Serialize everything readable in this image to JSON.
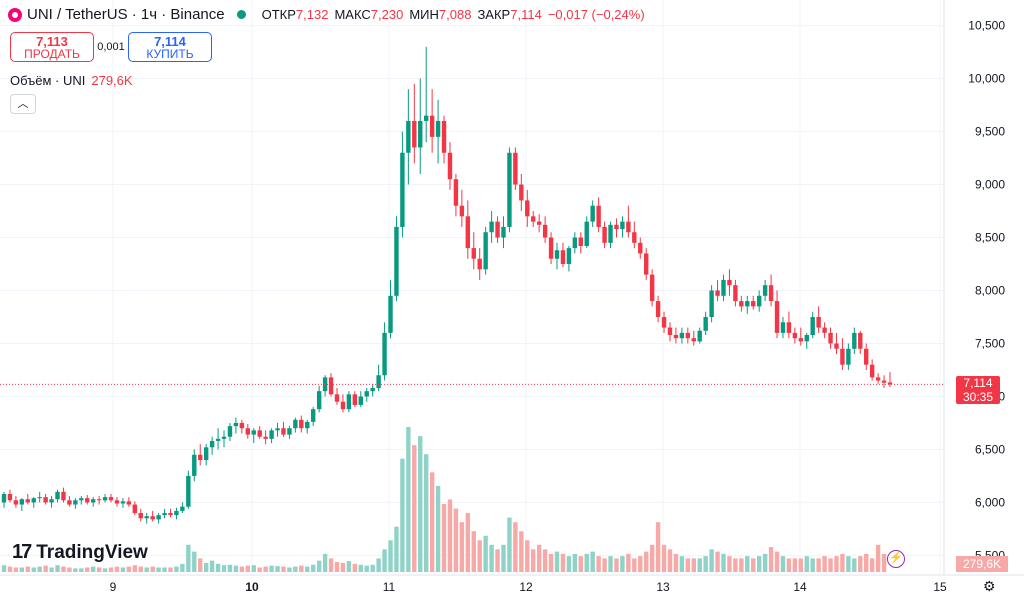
{
  "header": {
    "title": "UNI / TetherUS · 1ч · Binance",
    "open_label": "ОТКР",
    "open": "7,132",
    "high_label": "МАКС",
    "high": "7,230",
    "low_label": "МИН",
    "low": "7,088",
    "close_label": "ЗАКР",
    "close": "7,114",
    "change": "−0,017 (−0,24%)"
  },
  "trade": {
    "sell_price": "7,113",
    "sell_label": "ПРОДАТЬ",
    "spread": "0,001",
    "buy_price": "7,114",
    "buy_label": "КУПИТЬ"
  },
  "volume": {
    "label": "Объём · UNI",
    "value": "279,6K"
  },
  "logo": "TradingView",
  "price_tag": {
    "price": "7,114",
    "countdown": "30:35"
  },
  "volume_tag": "279,6K",
  "colors": {
    "up": "#089981",
    "down": "#f23645",
    "vol_up": "#8fd3c8",
    "vol_down": "#f7a9a7"
  },
  "chart_data": {
    "type": "candlestick",
    "y_ticks": [
      "5,500",
      "6,000",
      "6,500",
      "7,000",
      "7,500",
      "8,000",
      "8,500",
      "9,000",
      "9,500",
      "10,000",
      "10,500"
    ],
    "y_tick_values": [
      5.5,
      6.0,
      6.5,
      7.0,
      7.5,
      8.0,
      8.5,
      9.0,
      9.5,
      10.0,
      10.5
    ],
    "x_ticks": [
      "9",
      "10",
      "11",
      "12",
      "13",
      "14",
      "15"
    ],
    "x_tick_bold": [
      false,
      true,
      false,
      false,
      false,
      false,
      false
    ],
    "ylim": [
      5.4,
      10.6
    ],
    "last_price": 7.114,
    "candles": [
      [
        6.0,
        6.1,
        5.95,
        6.08
      ],
      [
        6.08,
        6.12,
        6.0,
        6.02
      ],
      [
        6.02,
        6.06,
        5.95,
        5.98
      ],
      [
        5.98,
        6.04,
        5.92,
        6.03
      ],
      [
        6.03,
        6.08,
        5.98,
        6.0
      ],
      [
        6.0,
        6.05,
        5.95,
        6.04
      ],
      [
        6.04,
        6.1,
        6.0,
        6.05
      ],
      [
        6.05,
        6.08,
        5.98,
        6.0
      ],
      [
        6.0,
        6.06,
        5.95,
        6.03
      ],
      [
        6.03,
        6.12,
        6.0,
        6.1
      ],
      [
        6.1,
        6.14,
        6.0,
        6.02
      ],
      [
        6.02,
        6.06,
        5.96,
        5.98
      ],
      [
        5.98,
        6.04,
        5.94,
        6.02
      ],
      [
        6.02,
        6.06,
        5.98,
        6.04
      ],
      [
        6.04,
        6.07,
        5.98,
        6.0
      ],
      [
        6.0,
        6.05,
        5.96,
        6.03
      ],
      [
        6.03,
        6.06,
        5.98,
        6.02
      ],
      [
        6.02,
        6.08,
        6.0,
        6.05
      ],
      [
        6.05,
        6.08,
        6.0,
        6.02
      ],
      [
        6.02,
        6.05,
        5.96,
        5.99
      ],
      [
        5.99,
        6.04,
        5.95,
        6.01
      ],
      [
        6.01,
        6.05,
        5.96,
        5.98
      ],
      [
        5.98,
        6.01,
        5.88,
        5.9
      ],
      [
        5.9,
        5.94,
        5.82,
        5.85
      ],
      [
        5.85,
        5.9,
        5.8,
        5.87
      ],
      [
        5.87,
        5.92,
        5.82,
        5.84
      ],
      [
        5.84,
        5.9,
        5.8,
        5.88
      ],
      [
        5.88,
        5.94,
        5.85,
        5.9
      ],
      [
        5.9,
        5.94,
        5.86,
        5.88
      ],
      [
        5.88,
        5.95,
        5.84,
        5.92
      ],
      [
        5.92,
        6.0,
        5.9,
        5.96
      ],
      [
        5.96,
        6.3,
        5.94,
        6.25
      ],
      [
        6.25,
        6.5,
        6.2,
        6.45
      ],
      [
        6.45,
        6.55,
        6.35,
        6.4
      ],
      [
        6.4,
        6.55,
        6.35,
        6.52
      ],
      [
        6.52,
        6.62,
        6.45,
        6.58
      ],
      [
        6.58,
        6.7,
        6.5,
        6.6
      ],
      [
        6.6,
        6.68,
        6.52,
        6.62
      ],
      [
        6.62,
        6.75,
        6.58,
        6.72
      ],
      [
        6.72,
        6.8,
        6.65,
        6.75
      ],
      [
        6.75,
        6.78,
        6.65,
        6.7
      ],
      [
        6.7,
        6.74,
        6.6,
        6.64
      ],
      [
        6.64,
        6.7,
        6.56,
        6.68
      ],
      [
        6.68,
        6.72,
        6.6,
        6.62
      ],
      [
        6.62,
        6.68,
        6.55,
        6.6
      ],
      [
        6.6,
        6.7,
        6.56,
        6.68
      ],
      [
        6.68,
        6.75,
        6.62,
        6.7
      ],
      [
        6.7,
        6.76,
        6.62,
        6.64
      ],
      [
        6.64,
        6.72,
        6.6,
        6.7
      ],
      [
        6.7,
        6.8,
        6.66,
        6.78
      ],
      [
        6.78,
        6.82,
        6.66,
        6.7
      ],
      [
        6.7,
        6.78,
        6.65,
        6.76
      ],
      [
        6.76,
        6.9,
        6.72,
        6.88
      ],
      [
        6.88,
        7.1,
        6.85,
        7.05
      ],
      [
        7.05,
        7.2,
        7.0,
        7.18
      ],
      [
        7.18,
        7.22,
        7.0,
        7.02
      ],
      [
        7.02,
        7.08,
        6.92,
        6.95
      ],
      [
        6.95,
        7.02,
        6.85,
        6.88
      ],
      [
        6.88,
        7.05,
        6.85,
        7.02
      ],
      [
        7.02,
        7.05,
        6.9,
        6.92
      ],
      [
        6.92,
        7.05,
        6.9,
        7.0
      ],
      [
        7.0,
        7.08,
        6.95,
        7.05
      ],
      [
        7.05,
        7.12,
        7.0,
        7.08
      ],
      [
        7.08,
        7.3,
        7.05,
        7.2
      ],
      [
        7.2,
        7.7,
        7.15,
        7.6
      ],
      [
        7.6,
        8.1,
        7.55,
        7.95
      ],
      [
        7.95,
        8.7,
        7.9,
        8.6
      ],
      [
        8.6,
        9.5,
        8.5,
        9.3
      ],
      [
        9.3,
        9.9,
        9.0,
        9.6
      ],
      [
        9.6,
        9.95,
        9.2,
        9.35
      ],
      [
        9.35,
        10.0,
        9.1,
        9.6
      ],
      [
        9.6,
        10.3,
        9.4,
        9.65
      ],
      [
        9.65,
        9.9,
        9.3,
        9.45
      ],
      [
        9.45,
        9.8,
        9.2,
        9.6
      ],
      [
        9.6,
        9.65,
        9.2,
        9.3
      ],
      [
        9.3,
        9.4,
        8.95,
        9.05
      ],
      [
        9.05,
        9.1,
        8.7,
        8.8
      ],
      [
        8.8,
        8.95,
        8.6,
        8.7
      ],
      [
        8.7,
        8.85,
        8.3,
        8.4
      ],
      [
        8.4,
        8.55,
        8.2,
        8.3
      ],
      [
        8.3,
        8.4,
        8.1,
        8.2
      ],
      [
        8.2,
        8.6,
        8.15,
        8.55
      ],
      [
        8.55,
        8.75,
        8.45,
        8.65
      ],
      [
        8.65,
        8.7,
        8.45,
        8.5
      ],
      [
        8.5,
        8.7,
        8.4,
        8.6
      ],
      [
        8.6,
        9.35,
        8.55,
        9.3
      ],
      [
        9.3,
        9.35,
        8.95,
        9.0
      ],
      [
        9.0,
        9.1,
        8.75,
        8.85
      ],
      [
        8.85,
        8.95,
        8.6,
        8.7
      ],
      [
        8.7,
        8.75,
        8.6,
        8.65
      ],
      [
        8.65,
        8.72,
        8.55,
        8.62
      ],
      [
        8.62,
        8.7,
        8.45,
        8.5
      ],
      [
        8.5,
        8.55,
        8.25,
        8.3
      ],
      [
        8.3,
        8.45,
        8.2,
        8.38
      ],
      [
        8.38,
        8.45,
        8.22,
        8.25
      ],
      [
        8.25,
        8.42,
        8.18,
        8.4
      ],
      [
        8.4,
        8.55,
        8.35,
        8.5
      ],
      [
        8.5,
        8.55,
        8.35,
        8.42
      ],
      [
        8.42,
        8.7,
        8.4,
        8.65
      ],
      [
        8.65,
        8.85,
        8.6,
        8.8
      ],
      [
        8.8,
        8.88,
        8.55,
        8.6
      ],
      [
        8.6,
        8.65,
        8.4,
        8.45
      ],
      [
        8.45,
        8.65,
        8.4,
        8.62
      ],
      [
        8.62,
        8.68,
        8.5,
        8.58
      ],
      [
        8.58,
        8.7,
        8.5,
        8.65
      ],
      [
        8.65,
        8.8,
        8.5,
        8.55
      ],
      [
        8.55,
        8.65,
        8.4,
        8.45
      ],
      [
        8.45,
        8.5,
        8.3,
        8.35
      ],
      [
        8.35,
        8.4,
        8.1,
        8.15
      ],
      [
        8.15,
        8.2,
        7.85,
        7.9
      ],
      [
        7.9,
        7.95,
        7.7,
        7.75
      ],
      [
        7.75,
        7.8,
        7.6,
        7.65
      ],
      [
        7.65,
        7.7,
        7.52,
        7.58
      ],
      [
        7.58,
        7.65,
        7.5,
        7.55
      ],
      [
        7.55,
        7.65,
        7.5,
        7.6
      ],
      [
        7.6,
        7.65,
        7.5,
        7.55
      ],
      [
        7.55,
        7.62,
        7.48,
        7.52
      ],
      [
        7.52,
        7.65,
        7.5,
        7.62
      ],
      [
        7.62,
        7.8,
        7.58,
        7.75
      ],
      [
        7.75,
        8.05,
        7.7,
        8.0
      ],
      [
        8.0,
        8.1,
        7.9,
        7.95
      ],
      [
        7.95,
        8.15,
        7.9,
        8.1
      ],
      [
        8.1,
        8.2,
        7.95,
        8.05
      ],
      [
        8.05,
        8.1,
        7.85,
        7.9
      ],
      [
        7.9,
        7.95,
        7.8,
        7.85
      ],
      [
        7.85,
        7.95,
        7.78,
        7.9
      ],
      [
        7.9,
        7.95,
        7.82,
        7.85
      ],
      [
        7.85,
        8.0,
        7.8,
        7.95
      ],
      [
        7.95,
        8.1,
        7.9,
        8.05
      ],
      [
        8.05,
        8.15,
        7.85,
        7.9
      ],
      [
        7.9,
        8.0,
        7.55,
        7.6
      ],
      [
        7.6,
        7.75,
        7.55,
        7.7
      ],
      [
        7.7,
        7.8,
        7.55,
        7.6
      ],
      [
        7.6,
        7.65,
        7.5,
        7.55
      ],
      [
        7.55,
        7.65,
        7.48,
        7.52
      ],
      [
        7.52,
        7.6,
        7.45,
        7.58
      ],
      [
        7.58,
        7.8,
        7.55,
        7.75
      ],
      [
        7.75,
        7.85,
        7.6,
        7.65
      ],
      [
        7.65,
        7.7,
        7.55,
        7.6
      ],
      [
        7.6,
        7.65,
        7.45,
        7.5
      ],
      [
        7.5,
        7.6,
        7.4,
        7.45
      ],
      [
        7.45,
        7.55,
        7.25,
        7.3
      ],
      [
        7.3,
        7.5,
        7.25,
        7.45
      ],
      [
        7.45,
        7.65,
        7.4,
        7.6
      ],
      [
        7.6,
        7.62,
        7.4,
        7.45
      ],
      [
        7.45,
        7.5,
        7.25,
        7.3
      ],
      [
        7.3,
        7.35,
        7.15,
        7.18
      ],
      [
        7.18,
        7.22,
        7.12,
        7.15
      ],
      [
        7.15,
        7.2,
        7.08,
        7.13
      ],
      [
        7.132,
        7.23,
        7.088,
        7.114
      ]
    ],
    "volumes": [
      0.15,
      0.12,
      0.1,
      0.1,
      0.12,
      0.1,
      0.12,
      0.14,
      0.1,
      0.15,
      0.12,
      0.1,
      0.08,
      0.08,
      0.1,
      0.12,
      0.1,
      0.08,
      0.1,
      0.12,
      0.1,
      0.12,
      0.15,
      0.12,
      0.1,
      0.12,
      0.1,
      0.1,
      0.1,
      0.12,
      0.18,
      0.6,
      0.45,
      0.3,
      0.2,
      0.25,
      0.18,
      0.15,
      0.16,
      0.14,
      0.12,
      0.14,
      0.15,
      0.1,
      0.12,
      0.14,
      0.13,
      0.12,
      0.1,
      0.12,
      0.14,
      0.12,
      0.16,
      0.25,
      0.4,
      0.3,
      0.22,
      0.2,
      0.24,
      0.18,
      0.16,
      0.14,
      0.16,
      0.3,
      0.5,
      0.7,
      1.0,
      2.5,
      3.2,
      2.8,
      3.0,
      2.6,
      2.2,
      1.9,
      1.5,
      1.6,
      1.4,
      1.1,
      1.3,
      0.9,
      0.7,
      0.8,
      0.6,
      0.5,
      0.6,
      1.2,
      1.1,
      0.9,
      0.7,
      0.5,
      0.6,
      0.5,
      0.4,
      0.45,
      0.4,
      0.35,
      0.4,
      0.35,
      0.4,
      0.45,
      0.35,
      0.3,
      0.35,
      0.3,
      0.35,
      0.4,
      0.3,
      0.35,
      0.45,
      0.6,
      1.1,
      0.6,
      0.5,
      0.4,
      0.35,
      0.3,
      0.3,
      0.3,
      0.35,
      0.5,
      0.45,
      0.4,
      0.35,
      0.3,
      0.3,
      0.35,
      0.3,
      0.35,
      0.4,
      0.55,
      0.45,
      0.35,
      0.3,
      0.3,
      0.3,
      0.35,
      0.3,
      0.3,
      0.35,
      0.3,
      0.35,
      0.4,
      0.35,
      0.3,
      0.35,
      0.4,
      0.3,
      0.6,
      0.4
    ]
  }
}
